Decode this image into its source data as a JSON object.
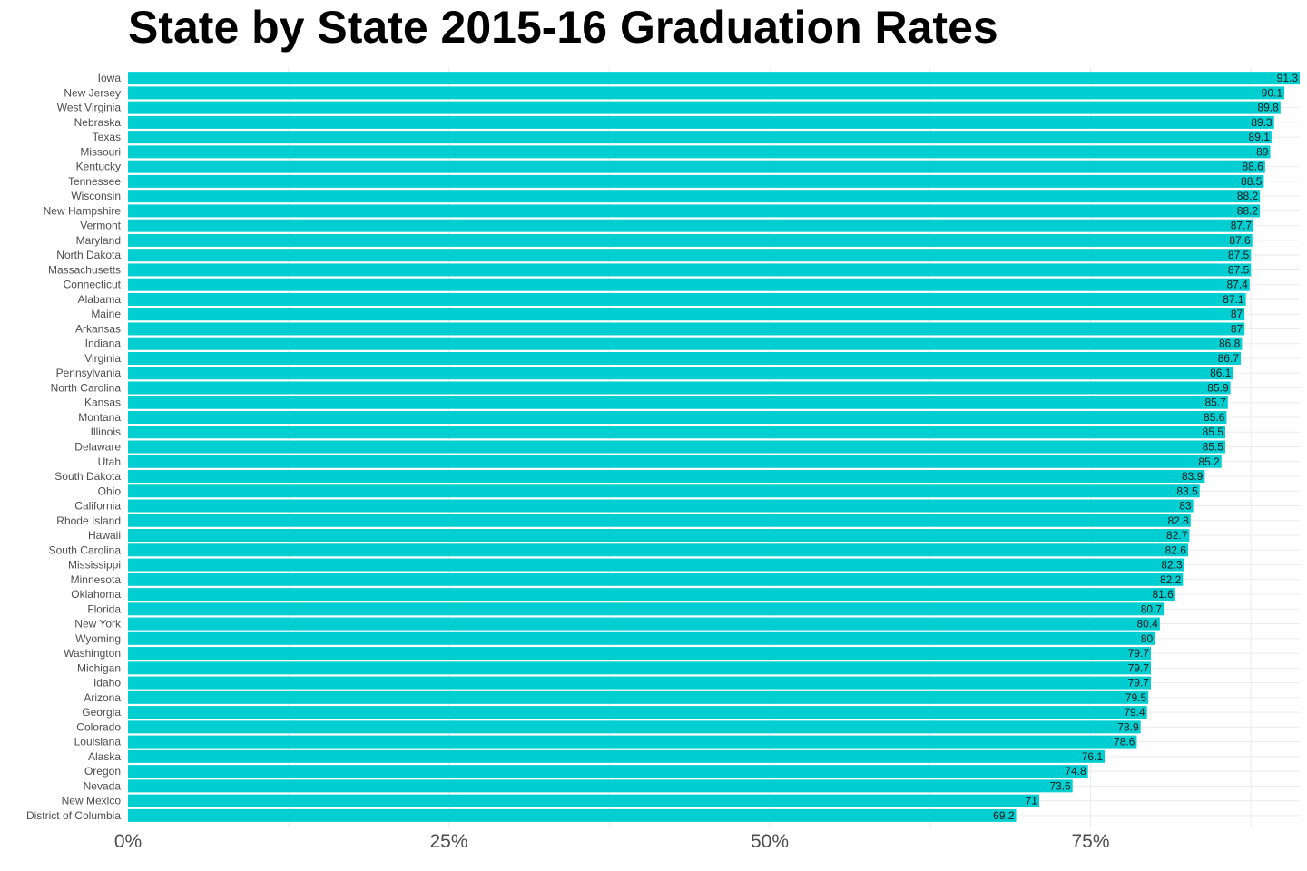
{
  "chart_data": {
    "type": "bar",
    "orientation": "horizontal",
    "title": "State by State 2015-16 Graduation Rates",
    "xlabel": "",
    "ylabel": "",
    "bar_color": "#00CED1",
    "xlim": [
      0,
      91.3
    ],
    "x_ticks": [
      0,
      25,
      50,
      75
    ],
    "x_tick_labels": [
      "0%",
      "25%",
      "50%",
      "75%"
    ],
    "grid": true,
    "categories": [
      "Iowa",
      "New Jersey",
      "West Virginia",
      "Nebraska",
      "Texas",
      "Missouri",
      "Kentucky",
      "Tennessee",
      "Wisconsin",
      "New Hampshire",
      "Vermont",
      "Maryland",
      "North Dakota",
      "Massachusetts",
      "Connecticut",
      "Alabama",
      "Maine",
      "Arkansas",
      "Indiana",
      "Virginia",
      "Pennsylvania",
      "North Carolina",
      "Kansas",
      "Montana",
      "Illinois",
      "Delaware",
      "Utah",
      "South Dakota",
      "Ohio",
      "California",
      "Rhode Island",
      "Hawaii",
      "South Carolina",
      "Mississippi",
      "Minnesota",
      "Oklahoma",
      "Florida",
      "New York",
      "Wyoming",
      "Washington",
      "Michigan",
      "Idaho",
      "Arizona",
      "Georgia",
      "Colorado",
      "Louisiana",
      "Alaska",
      "Oregon",
      "Nevada",
      "New Mexico",
      "District of Columbia"
    ],
    "values": [
      91.3,
      90.1,
      89.8,
      89.3,
      89.1,
      89,
      88.6,
      88.5,
      88.2,
      88.2,
      87.7,
      87.6,
      87.5,
      87.5,
      87.4,
      87.1,
      87,
      87,
      86.8,
      86.7,
      86.1,
      85.9,
      85.7,
      85.6,
      85.5,
      85.5,
      85.2,
      83.9,
      83.5,
      83,
      82.8,
      82.7,
      82.6,
      82.3,
      82.2,
      81.6,
      80.7,
      80.4,
      80,
      79.7,
      79.7,
      79.7,
      79.5,
      79.4,
      78.9,
      78.6,
      76.1,
      74.8,
      73.6,
      71,
      69.2
    ],
    "value_labels": [
      "91.3",
      "90.1",
      "89.8",
      "89.3",
      "89.1",
      "89",
      "88.6",
      "88.5",
      "88.2",
      "88.2",
      "87.7",
      "87.6",
      "87.5",
      "87.5",
      "87.4",
      "87.1",
      "87",
      "87",
      "86.8",
      "86.7",
      "86.1",
      "85.9",
      "85.7",
      "85.6",
      "85.5",
      "85.5",
      "85.2",
      "83.9",
      "83.5",
      "83",
      "82.8",
      "82.7",
      "82.6",
      "82.3",
      "82.2",
      "81.6",
      "80.7",
      "80.4",
      "80",
      "79.7",
      "79.7",
      "79.7",
      "79.5",
      "79.4",
      "78.9",
      "78.6",
      "76.1",
      "74.8",
      "73.6",
      "71",
      "69.2"
    ]
  }
}
